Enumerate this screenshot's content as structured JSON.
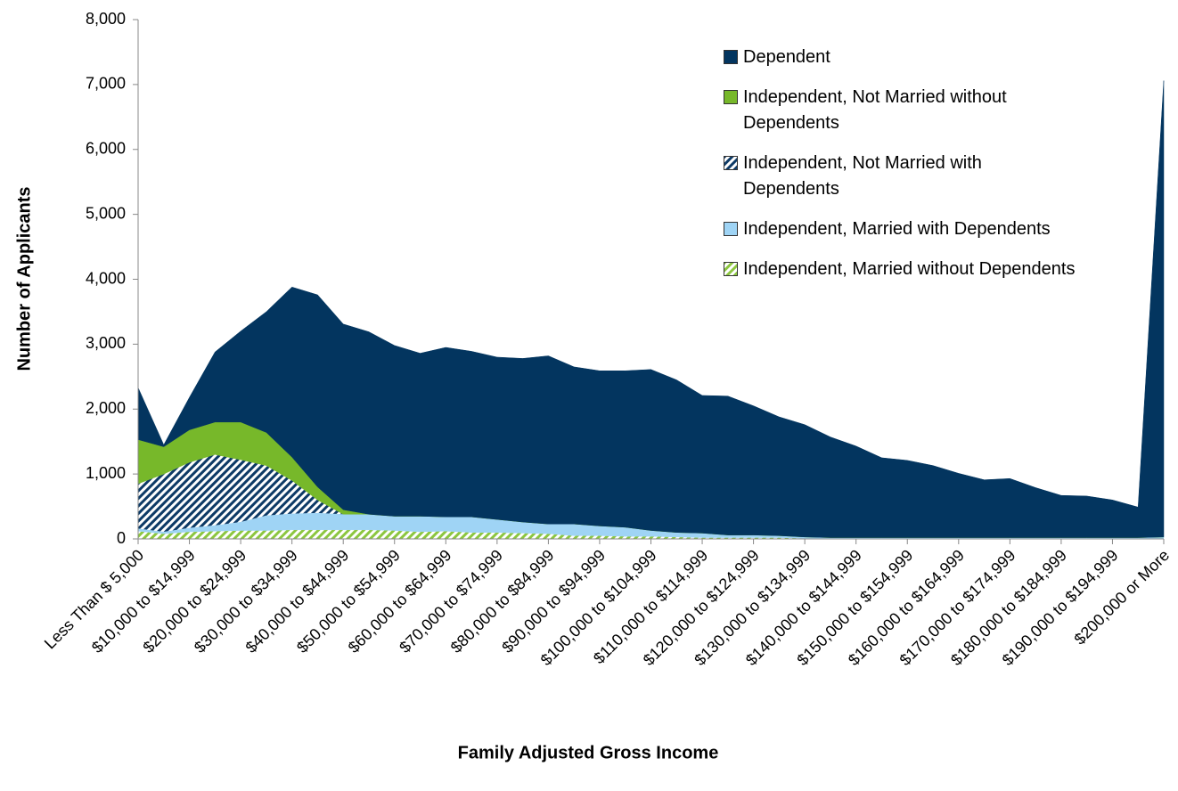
{
  "chart_data": {
    "type": "stacked_area",
    "categories": [
      "Less Than $ 5,000",
      null,
      "$10,000 to $14,999",
      null,
      "$20,000 to $24,999",
      null,
      "$30,000 to $34,999",
      null,
      "$40,000 to $44,999",
      null,
      "$50,000 to $54,999",
      null,
      "$60,000 to $64,999",
      null,
      "$70,000 to $74,999",
      null,
      "$80,000 to $84,999",
      null,
      "$90,000 to $94,999",
      null,
      "$100,000 to $104,999",
      null,
      "$110,000 to $114,999",
      null,
      "$120,000 to $124,999",
      null,
      "$130,000 to $134,999",
      null,
      "$140,000 to $144,999",
      null,
      "$150,000 to $154,999",
      null,
      "$160,000 to $164,999",
      null,
      "$170,000 to $174,999",
      null,
      "$180,000 to $184,999",
      null,
      "$190,000 to $194,999",
      null,
      "$200,000 or More"
    ],
    "series": [
      {
        "name": "Independent, Married without Dependents",
        "color": "#8cc63f",
        "hatch": true,
        "values": [
          120,
          80,
          110,
          120,
          130,
          130,
          140,
          140,
          140,
          140,
          130,
          110,
          120,
          100,
          100,
          90,
          80,
          50,
          50,
          40,
          40,
          30,
          20,
          20,
          20,
          20,
          10,
          10,
          10,
          10,
          10,
          10,
          10,
          10,
          10,
          10,
          10,
          10,
          10,
          10,
          10
        ]
      },
      {
        "name": "Independent, Married with Dependents",
        "color": "#9fd4f5",
        "hatch": false,
        "values": [
          40,
          30,
          60,
          90,
          130,
          230,
          250,
          260,
          240,
          240,
          220,
          240,
          220,
          240,
          200,
          170,
          150,
          180,
          150,
          140,
          90,
          70,
          70,
          40,
          40,
          30,
          20,
          10,
          10,
          10,
          10,
          10,
          10,
          10,
          10,
          10,
          10,
          10,
          10,
          10,
          20
        ]
      },
      {
        "name": "Independent, Not Married with Dependents",
        "color": "#0d3a66",
        "hatch": true,
        "values": [
          690,
          890,
          1010,
          1090,
          960,
          770,
          510,
          200,
          0,
          0,
          0,
          0,
          0,
          0,
          0,
          0,
          0,
          0,
          0,
          0,
          0,
          0,
          0,
          0,
          0,
          0,
          0,
          0,
          0,
          0,
          0,
          0,
          0,
          0,
          0,
          0,
          0,
          0,
          0,
          0,
          0
        ]
      },
      {
        "name": "Independent, Not Married without Dependents",
        "color": "#77b82a",
        "hatch": false,
        "values": [
          680,
          420,
          500,
          500,
          580,
          510,
          360,
          200,
          70,
          0,
          0,
          0,
          0,
          0,
          0,
          0,
          0,
          0,
          0,
          0,
          0,
          0,
          0,
          0,
          0,
          0,
          0,
          0,
          0,
          0,
          0,
          0,
          0,
          0,
          0,
          0,
          0,
          0,
          0,
          0,
          0
        ]
      },
      {
        "name": "Dependent",
        "color": "#03355f",
        "hatch": false,
        "values": [
          800,
          30,
          500,
          1080,
          1400,
          1860,
          2620,
          2960,
          2860,
          2810,
          2630,
          2510,
          2610,
          2550,
          2500,
          2520,
          2590,
          2420,
          2390,
          2410,
          2480,
          2350,
          2120,
          2140,
          1990,
          1830,
          1730,
          1550,
          1410,
          1230,
          1190,
          1110,
          990,
          890,
          910,
          770,
          650,
          640,
          580,
          470,
          7030
        ]
      }
    ],
    "ylim": [
      0,
      8000
    ],
    "yticks": [
      0,
      {
        "value": 1000,
        "label": "1,000"
      },
      {
        "value": 2000,
        "label": "2,000"
      },
      {
        "value": 3000,
        "label": "3,000"
      },
      {
        "value": 4000,
        "label": "4,000"
      },
      {
        "value": 5000,
        "label": "5,000"
      },
      {
        "value": 6000,
        "label": "6,000"
      },
      {
        "value": 7000,
        "label": "7,000"
      },
      {
        "value": 8000,
        "label": "8,000"
      }
    ],
    "xlabel": "Family Adjusted Gross Income",
    "ylabel": "Number of Applicants",
    "grid": false,
    "legend": "upper right"
  }
}
